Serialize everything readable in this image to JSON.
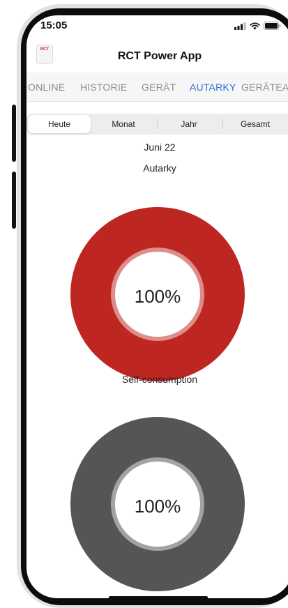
{
  "status_bar": {
    "time": "15:05"
  },
  "header": {
    "title": "RCT Power App",
    "logo_text": "RCT"
  },
  "tabs": [
    {
      "label": "ONLINE",
      "active": false
    },
    {
      "label": "HISTORIE",
      "active": false
    },
    {
      "label": "GERÄT",
      "active": false
    },
    {
      "label": "AUTARKY",
      "active": true
    },
    {
      "label": "GERÄTEA...",
      "active": false
    }
  ],
  "periods": [
    {
      "label": "Heute",
      "selected": true
    },
    {
      "label": "Monat",
      "selected": false
    },
    {
      "label": "Jahr",
      "selected": false
    },
    {
      "label": "Gesamt",
      "selected": false
    }
  ],
  "period_label": "Juni 22",
  "autarky": {
    "title": "Autarky",
    "value": "100%",
    "fraction": 1.0,
    "color": "#be2621"
  },
  "self_consumption": {
    "title": "Self-consumption",
    "value": "100%",
    "fraction": 1.0,
    "color": "#555555"
  },
  "colors": {
    "accent": "#2f6fd8"
  }
}
